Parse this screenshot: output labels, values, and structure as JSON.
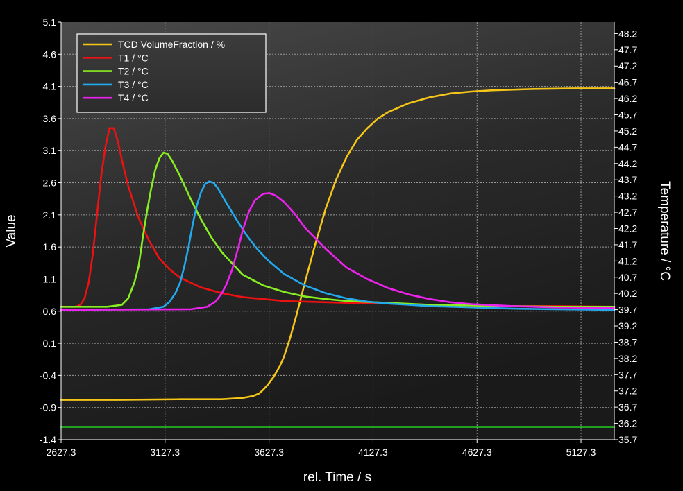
{
  "chart_data": {
    "type": "line",
    "xlabel": "rel. Time / s",
    "ylabel_left": "Value",
    "ylabel_right": "Temperature / °C",
    "x_ticks": [
      "2627.3",
      "3127.3",
      "3627.3",
      "4127.3",
      "4627.3",
      "5127.3"
    ],
    "x_tick_values": [
      2627.3,
      3127.3,
      3627.3,
      4127.3,
      4627.3,
      5127.3
    ],
    "xlim": [
      2627.3,
      5287.3
    ],
    "y_left_ticks": [
      "5.1",
      "4.6",
      "4.1",
      "3.6",
      "3.1",
      "2.6",
      "2.1",
      "1.6",
      "1.1",
      "0.6",
      "0.1",
      "-0.4",
      "-0.9",
      "-1.4"
    ],
    "y_left_tick_values": [
      5.1,
      4.6,
      4.1,
      3.6,
      3.1,
      2.6,
      2.1,
      1.6,
      1.1,
      0.6,
      0.1,
      -0.4,
      -0.9,
      -1.4
    ],
    "ylim_left": [
      -1.4,
      5.1
    ],
    "y_right_ticks": [
      "48.2",
      "47.7",
      "47.2",
      "46.7",
      "46.2",
      "45.7",
      "45.2",
      "44.7",
      "44.2",
      "43.7",
      "43.2",
      "42.7",
      "42.2",
      "41.7",
      "41.2",
      "40.7",
      "40.2",
      "39.7",
      "39.2",
      "38.7",
      "38.2",
      "37.7",
      "37.2",
      "36.7",
      "36.2",
      "35.7"
    ],
    "y_right_tick_values": [
      48.2,
      47.7,
      47.2,
      46.7,
      46.2,
      45.7,
      45.2,
      44.7,
      44.2,
      43.7,
      43.2,
      42.7,
      42.2,
      41.7,
      41.2,
      40.7,
      40.2,
      39.7,
      39.2,
      38.7,
      38.2,
      37.7,
      37.2,
      36.7,
      36.2,
      35.7
    ],
    "ylim_right": [
      35.7,
      48.55
    ],
    "grid": true,
    "legend_position": "top-left",
    "series": [
      {
        "name": "TCD VolumeFraction / %",
        "axis": "left",
        "color": "#f5c518",
        "x": [
          2627.3,
          2900,
          3200,
          3400,
          3500,
          3550,
          3580,
          3600,
          3620,
          3650,
          3680,
          3700,
          3730,
          3760,
          3800,
          3850,
          3900,
          3950,
          4000,
          4050,
          4100,
          4150,
          4200,
          4300,
          4400,
          4500,
          4600,
          4700,
          4900,
          5100,
          5287.3
        ],
        "y": [
          -0.78,
          -0.78,
          -0.77,
          -0.77,
          -0.75,
          -0.72,
          -0.68,
          -0.62,
          -0.55,
          -0.42,
          -0.25,
          -0.1,
          0.2,
          0.55,
          1.05,
          1.65,
          2.2,
          2.65,
          3.0,
          3.27,
          3.45,
          3.6,
          3.7,
          3.84,
          3.93,
          3.99,
          4.02,
          4.04,
          4.06,
          4.07,
          4.07
        ]
      },
      {
        "name": "T1 / °C",
        "axis": "left",
        "color": "#ee1111",
        "x": [
          2627.3,
          2700,
          2720,
          2740,
          2760,
          2780,
          2800,
          2820,
          2840,
          2860,
          2880,
          2900,
          2920,
          2950,
          3000,
          3050,
          3100,
          3150,
          3200,
          3300,
          3400,
          3500,
          3600,
          3700,
          3800,
          3900,
          4000,
          4200,
          4400,
          4600,
          4800,
          5000,
          5287.3
        ],
        "y": [
          0.67,
          0.67,
          0.7,
          0.8,
          1.05,
          1.5,
          2.1,
          2.7,
          3.15,
          3.45,
          3.45,
          3.25,
          2.95,
          2.55,
          2.05,
          1.7,
          1.42,
          1.25,
          1.12,
          0.97,
          0.88,
          0.82,
          0.79,
          0.76,
          0.75,
          0.74,
          0.73,
          0.72,
          0.7,
          0.69,
          0.68,
          0.68,
          0.67
        ]
      },
      {
        "name": "T2 / °C",
        "axis": "left",
        "color": "#88ee22",
        "x": [
          2627.3,
          2850,
          2920,
          2950,
          2980,
          3000,
          3020,
          3040,
          3060,
          3080,
          3100,
          3120,
          3140,
          3160,
          3200,
          3250,
          3300,
          3350,
          3400,
          3500,
          3600,
          3700,
          3800,
          3900,
          4000,
          4200,
          4400,
          4600,
          4800,
          5000,
          5287.3
        ],
        "y": [
          0.67,
          0.67,
          0.7,
          0.8,
          1.05,
          1.3,
          1.75,
          2.15,
          2.5,
          2.8,
          2.98,
          3.07,
          3.05,
          2.95,
          2.7,
          2.35,
          2.03,
          1.75,
          1.52,
          1.17,
          1.0,
          0.9,
          0.83,
          0.79,
          0.76,
          0.73,
          0.7,
          0.69,
          0.68,
          0.67,
          0.67
        ]
      },
      {
        "name": "T3 / °C",
        "axis": "left",
        "color": "#22aaee",
        "x": [
          2627.3,
          3050,
          3120,
          3150,
          3180,
          3200,
          3220,
          3240,
          3260,
          3280,
          3300,
          3320,
          3340,
          3360,
          3380,
          3420,
          3470,
          3520,
          3570,
          3620,
          3700,
          3800,
          3900,
          4000,
          4100,
          4200,
          4300,
          4400,
          4600,
          4800,
          5000,
          5287.3
        ],
        "y": [
          0.62,
          0.63,
          0.67,
          0.75,
          0.9,
          1.05,
          1.3,
          1.6,
          1.95,
          2.25,
          2.45,
          2.58,
          2.62,
          2.6,
          2.52,
          2.3,
          2.03,
          1.78,
          1.57,
          1.4,
          1.18,
          1.0,
          0.88,
          0.8,
          0.75,
          0.72,
          0.7,
          0.68,
          0.66,
          0.64,
          0.63,
          0.62
        ]
      },
      {
        "name": "T4 / °C",
        "axis": "left",
        "color": "#ee22ee",
        "x": [
          2627.3,
          3250,
          3330,
          3370,
          3400,
          3420,
          3450,
          3480,
          3500,
          3530,
          3560,
          3600,
          3630,
          3660,
          3700,
          3750,
          3800,
          3900,
          4000,
          4100,
          4200,
          4300,
          4400,
          4500,
          4600,
          4800,
          5000,
          5287.3
        ],
        "y": [
          0.62,
          0.63,
          0.67,
          0.75,
          0.88,
          1.0,
          1.25,
          1.6,
          1.85,
          2.15,
          2.33,
          2.43,
          2.44,
          2.4,
          2.3,
          2.12,
          1.9,
          1.57,
          1.28,
          1.1,
          0.96,
          0.86,
          0.79,
          0.74,
          0.71,
          0.68,
          0.66,
          0.65
        ]
      },
      {
        "name": "",
        "axis": "left",
        "color": "#22cc22",
        "x": [
          2627.3,
          5287.3
        ],
        "y": [
          -1.2,
          -1.2
        ]
      }
    ]
  }
}
